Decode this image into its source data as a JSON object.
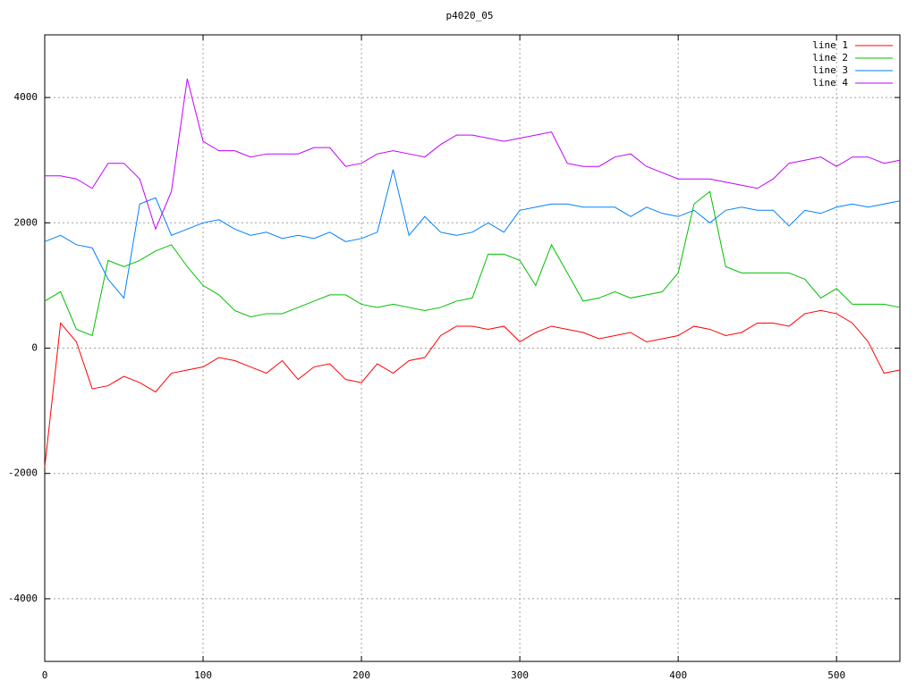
{
  "chart_data": {
    "type": "line",
    "title": "p4020_05",
    "x": [
      0,
      10,
      20,
      30,
      40,
      50,
      60,
      70,
      80,
      90,
      100,
      110,
      120,
      130,
      140,
      150,
      160,
      170,
      180,
      190,
      200,
      210,
      220,
      230,
      240,
      250,
      260,
      270,
      280,
      290,
      300,
      310,
      320,
      330,
      340,
      350,
      360,
      370,
      380,
      390,
      400,
      410,
      420,
      430,
      440,
      450,
      460,
      470,
      480,
      490,
      500,
      510,
      520,
      530,
      540
    ],
    "series": [
      {
        "name": "line 1",
        "color": "#ff0000",
        "values": [
          -1900,
          400,
          100,
          -650,
          -600,
          -450,
          -550,
          -700,
          -400,
          -350,
          -300,
          -150,
          -200,
          -300,
          -400,
          -200,
          -500,
          -300,
          -250,
          -500,
          -550,
          -250,
          -400,
          -200,
          -150,
          200,
          350,
          350,
          300,
          350,
          100,
          250,
          350,
          300,
          250,
          150,
          200,
          250,
          100,
          150,
          200,
          350,
          300,
          200,
          250,
          400,
          400,
          350,
          550,
          600,
          550,
          400,
          100,
          -400,
          -350
        ]
      },
      {
        "name": "line 2",
        "color": "#00c000",
        "values": [
          750,
          900,
          300,
          200,
          1400,
          1300,
          1400,
          1550,
          1650,
          1300,
          1000,
          850,
          600,
          500,
          550,
          550,
          650,
          750,
          850,
          850,
          700,
          650,
          700,
          650,
          600,
          650,
          750,
          800,
          1500,
          1500,
          1400,
          1000,
          1650,
          1200,
          750,
          800,
          900,
          800,
          850,
          900,
          1200,
          2300,
          2500,
          1300,
          1200,
          1200,
          1200,
          1200,
          1100,
          800,
          950,
          700,
          700,
          700,
          650
        ]
      },
      {
        "name": "line 3",
        "color": "#0080ff",
        "values": [
          1700,
          1800,
          1650,
          1600,
          1100,
          800,
          2300,
          2400,
          1800,
          1900,
          2000,
          2050,
          1900,
          1800,
          1850,
          1750,
          1800,
          1750,
          1850,
          1700,
          1750,
          1850,
          2850,
          1800,
          2100,
          1850,
          1800,
          1850,
          2000,
          1850,
          2200,
          2250,
          2300,
          2300,
          2250,
          2250,
          2250,
          2100,
          2250,
          2150,
          2100,
          2200,
          2000,
          2200,
          2250,
          2200,
          2200,
          1950,
          2200,
          2150,
          2250,
          2300,
          2250,
          2300,
          2350
        ]
      },
      {
        "name": "line 4",
        "color": "#c000ff",
        "values": [
          2750,
          2750,
          2700,
          2550,
          2950,
          2950,
          2700,
          1900,
          2500,
          4300,
          3300,
          3150,
          3150,
          3050,
          3100,
          3100,
          3100,
          3200,
          3200,
          2900,
          2950,
          3100,
          3150,
          3100,
          3050,
          3250,
          3400,
          3400,
          3350,
          3300,
          3350,
          3400,
          3450,
          2950,
          2900,
          2900,
          3050,
          3100,
          2900,
          2800,
          2700,
          2700,
          2700,
          2650,
          2600,
          2550,
          2700,
          2950,
          3000,
          3050,
          2900,
          3050,
          3050,
          2950,
          3000
        ]
      }
    ],
    "xlim": [
      0,
      540
    ],
    "ylim": [
      -5000,
      5000
    ],
    "xticks": [
      0,
      100,
      200,
      300,
      400,
      500
    ],
    "yticks": [
      -4000,
      -2000,
      0,
      2000,
      4000
    ],
    "grid": true,
    "legend": "top-right"
  }
}
